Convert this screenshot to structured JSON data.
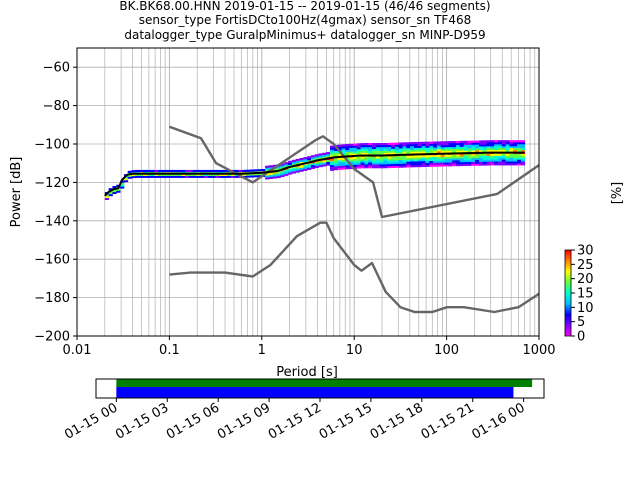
{
  "title": {
    "line1": "BK.BK68.00.HNN   2019-01-15 -- 2019-01-15  (46/46 segments)",
    "line2": "sensor_type FortisDCto100Hz(4gmax) sensor_sn TF468",
    "line3": "datalogger_type GuralpMinimus+ datalogger_sn MINP-D959"
  },
  "colorbar": {
    "label": "[%]",
    "ticks": [
      "0",
      "5",
      "10",
      "15",
      "20",
      "25",
      "30"
    ],
    "range": [
      0,
      30
    ],
    "colors": [
      "#ff00ff",
      "#8000ff",
      "#0000ff",
      "#00c0ff",
      "#00ffd0",
      "#60ff40",
      "#ffff00",
      "#ff8000",
      "#ff0000"
    ]
  },
  "chart_data": [
    {
      "type": "heatmap",
      "subtype": "probabilistic power spectral density",
      "xlabel": "Period [s]",
      "ylabel": "Power [dB]",
      "xscale": "log",
      "xlim": [
        0.01,
        1000
      ],
      "ylim": [
        -200,
        -50
      ],
      "xticks": [
        "0.01",
        "0.1",
        "1",
        "10",
        "100",
        "1000"
      ],
      "yticks": [
        "−200",
        "−180",
        "−160",
        "−140",
        "−120",
        "−100",
        "−80",
        "−60"
      ],
      "grid": true,
      "series": [
        {
          "name": "",
          "role": "new high noise model",
          "color": "#666666",
          "points": [
            [
              0.1,
              -91
            ],
            [
              0.22,
              -97
            ],
            [
              0.32,
              -110
            ],
            [
              0.8,
              -120
            ],
            [
              3.8,
              -98
            ],
            [
              4.6,
              -96
            ],
            [
              6,
              -100
            ],
            [
              10,
              -113
            ],
            [
              16,
              -120
            ],
            [
              20,
              -138
            ],
            [
              354,
              -126
            ],
            [
              1000,
              -111
            ]
          ]
        },
        {
          "name": "",
          "role": "new low noise model",
          "color": "#666666",
          "points": [
            [
              0.1,
              -168
            ],
            [
              0.17,
              -167
            ],
            [
              0.4,
              -167
            ],
            [
              0.8,
              -169
            ],
            [
              1.24,
              -163
            ],
            [
              2.4,
              -148
            ],
            [
              4.3,
              -141
            ],
            [
              5,
              -141
            ],
            [
              6,
              -149
            ],
            [
              10,
              -163
            ],
            [
              12,
              -166
            ],
            [
              15.6,
              -162
            ],
            [
              21.9,
              -177
            ],
            [
              31.6,
              -185
            ],
            [
              45,
              -187.5
            ],
            [
              70,
              -187.5
            ],
            [
              101,
              -185
            ],
            [
              154,
              -185
            ],
            [
              328,
              -187.5
            ],
            [
              600,
              -185
            ],
            [
              1000,
              -178
            ]
          ]
        },
        {
          "name": "",
          "role": "mode",
          "color": "#000000",
          "points": [
            [
              0.02,
              -127
            ],
            [
              0.022,
              -125
            ],
            [
              0.025,
              -123.5
            ],
            [
              0.028,
              -123
            ],
            [
              0.031,
              -118.5
            ],
            [
              0.035,
              -116
            ],
            [
              0.04,
              -115.5
            ],
            [
              0.1,
              -115.5
            ],
            [
              0.3,
              -115.5
            ],
            [
              0.6,
              -115.5
            ],
            [
              1,
              -115
            ],
            [
              1.5,
              -114
            ],
            [
              2,
              -112
            ],
            [
              3,
              -110
            ],
            [
              4,
              -108.5
            ],
            [
              6,
              -107
            ],
            [
              8,
              -106.5
            ],
            [
              12,
              -106
            ],
            [
              20,
              -106
            ],
            [
              40,
              -105.5
            ],
            [
              100,
              -105
            ],
            [
              300,
              -104.5
            ],
            [
              700,
              -104.5
            ]
          ]
        }
      ]
    },
    {
      "type": "bar",
      "subtype": "data coverage timeline",
      "xticks": [
        "01-15 00",
        "01-15 03",
        "01-15 06",
        "01-15 09",
        "01-15 12",
        "01-15 15",
        "01-15 18",
        "01-15 21",
        "01-16 00"
      ],
      "xlim_hours": [
        -1.2,
        25.2
      ],
      "series": [
        {
          "name": "",
          "role": "data available",
          "color": "#008000",
          "start_hours": 0,
          "end_hours": 24.5
        },
        {
          "name": "",
          "role": "data used",
          "color": "#0000ff",
          "start_hours": 0,
          "end_hours": 23.4
        }
      ]
    }
  ]
}
